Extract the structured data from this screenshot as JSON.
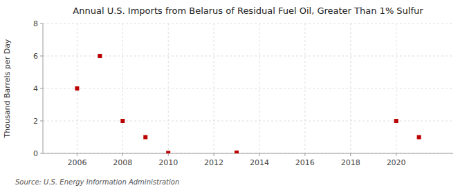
{
  "chart_data": {
    "type": "scatter",
    "title": "Annual U.S. Imports from Belarus of Residual Fuel Oil, Greater Than 1% Sulfur",
    "y_label": "Thousand Barrels per Day",
    "annotations": [
      "Source: U.S. Energy Information Administration"
    ],
    "x": [
      2006,
      2007,
      2008,
      2009,
      2010,
      2013,
      2020,
      2021
    ],
    "values": [
      4.0,
      6.0,
      2.0,
      1.0,
      0.03,
      0.05,
      2.0,
      1.0
    ],
    "color": "#bb0000",
    "marker": "square",
    "xlim": [
      2004.5,
      2022.5
    ],
    "xticks": [
      2006,
      2008,
      2010,
      2012,
      2014,
      2016,
      2018,
      2020
    ],
    "ylim": [
      0,
      8
    ],
    "yticks": [
      0,
      2,
      4,
      6,
      8
    ],
    "grid": true
  }
}
